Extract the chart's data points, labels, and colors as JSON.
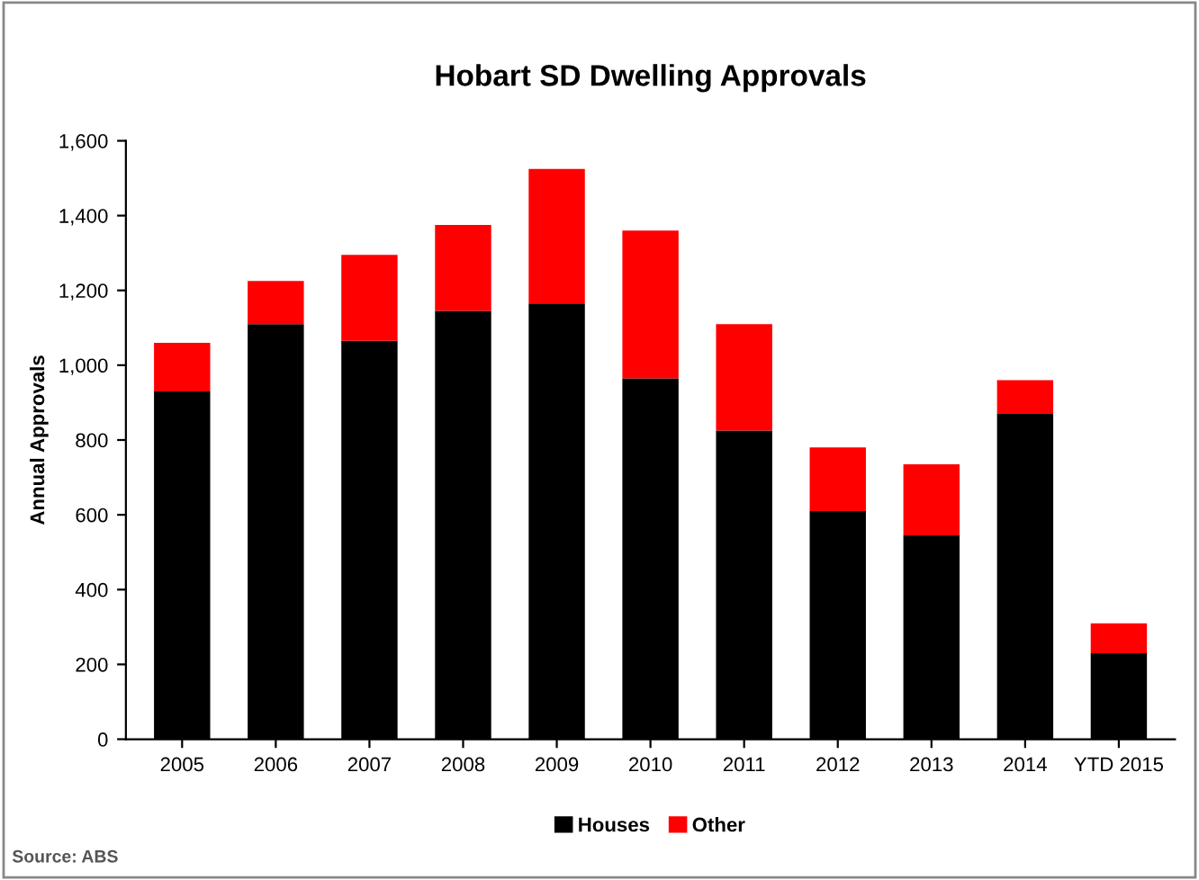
{
  "chart_data": {
    "type": "bar",
    "title": "Hobart SD Dwelling Approvals",
    "ylabel": "Annual Approvals",
    "stacked": true,
    "legend": "bottom",
    "grid": false,
    "categories": [
      "2005",
      "2006",
      "2007",
      "2008",
      "2009",
      "2010",
      "2011",
      "2012",
      "2013",
      "2014",
      "YTD 2015"
    ],
    "series": [
      {
        "name": "Houses",
        "color": "#000000",
        "values": [
          930,
          1110,
          1065,
          1145,
          1165,
          965,
          825,
          610,
          545,
          870,
          230
        ]
      },
      {
        "name": "Other",
        "color": "#ff0000",
        "values": [
          130,
          115,
          230,
          230,
          360,
          395,
          285,
          170,
          190,
          90,
          80
        ]
      }
    ],
    "ylim": [
      0,
      1600
    ],
    "yticks": [
      0,
      {
        "value": 200,
        "label": "200"
      },
      {
        "value": 400,
        "label": "400"
      },
      {
        "value": 600,
        "label": "600"
      },
      {
        "value": 800,
        "label": "800"
      },
      {
        "value": 1000,
        "label": "1,000"
      },
      {
        "value": 1200,
        "label": "1,200"
      },
      {
        "value": 1400,
        "label": "1,400"
      },
      {
        "value": 1600,
        "label": "1,600"
      }
    ],
    "annotations": [
      "Source: ABS"
    ]
  }
}
